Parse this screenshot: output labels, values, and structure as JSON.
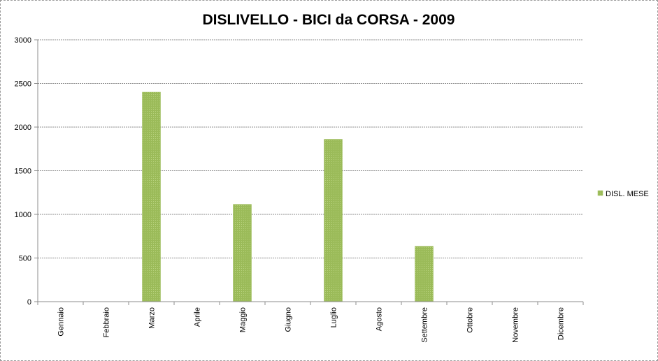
{
  "chart_data": {
    "type": "bar",
    "title": "DISLIVELLO - BICI da CORSA - 2009",
    "xlabel": "",
    "ylabel": "",
    "categories": [
      "Gennaio",
      "Febbraio",
      "Marzo",
      "Aprile",
      "Maggio",
      "Giugno",
      "Luglio",
      "Agosto",
      "Settembre",
      "Ottobre",
      "Novembre",
      "Dicembre"
    ],
    "series": [
      {
        "name": "DISL. MESE",
        "color": "#9bbb59",
        "values": [
          0,
          0,
          2400,
          0,
          1115,
          0,
          1860,
          0,
          635,
          0,
          0,
          0
        ]
      }
    ],
    "ylim": [
      0,
      3000
    ],
    "yticks": [
      "0",
      "500",
      "1000",
      "1500",
      "2000",
      "2500",
      "3000"
    ],
    "grid": true,
    "legend": "right"
  }
}
